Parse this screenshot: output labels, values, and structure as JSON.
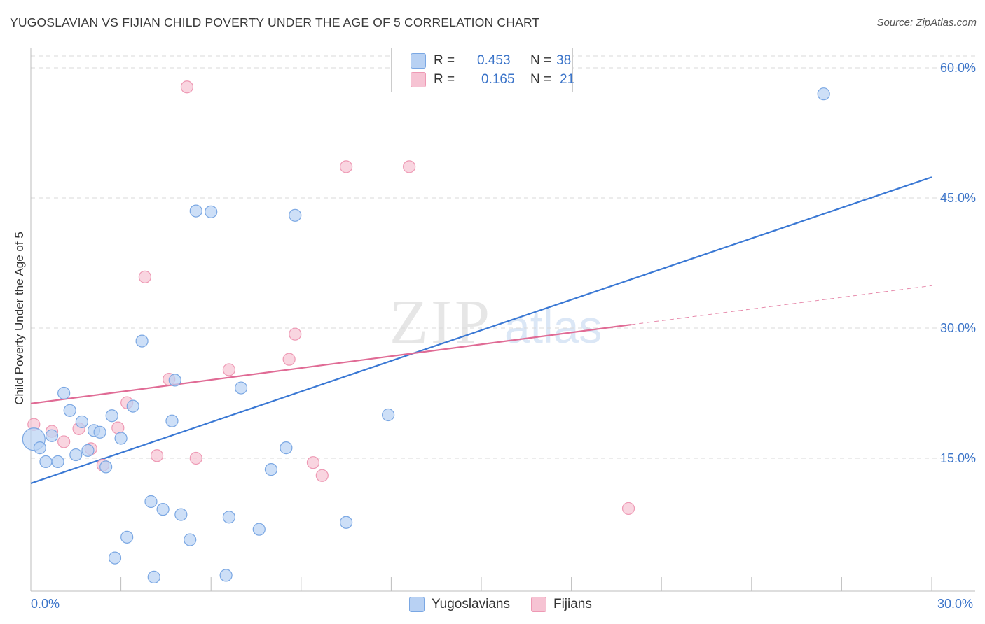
{
  "header": {
    "title": "YUGOSLAVIAN VS FIJIAN CHILD POVERTY UNDER THE AGE OF 5 CORRELATION CHART",
    "source": "Source: ZipAtlas.com"
  },
  "legend_top": {
    "rows": [
      {
        "r_label": "R =",
        "r_value": "0.453",
        "n_label": "N =",
        "n_value": "38"
      },
      {
        "r_label": "R =",
        "r_value": "0.165",
        "n_label": "N =",
        "n_value": "21"
      }
    ]
  },
  "legend_bottom": {
    "items": [
      "Yugoslavians",
      "Fijians"
    ]
  },
  "watermark": {
    "zip": "ZIP",
    "atlas": "atlas"
  },
  "colors": {
    "blue_fill": "#b8d1f3",
    "blue_stroke": "#7aa7e3",
    "blue_line": "#3a78d4",
    "pink_fill": "#f6c3d3",
    "pink_stroke": "#ee99b4",
    "pink_line": "#e06b95",
    "grid": "#d9d9d9",
    "axis_text": "#3b74c9"
  },
  "chart_data": {
    "type": "scatter",
    "title": "YUGOSLAVIAN VS FIJIAN CHILD POVERTY UNDER THE AGE OF 5 CORRELATION CHART",
    "xlabel": "",
    "ylabel": "Child Poverty Under the Age of 5",
    "xlim": [
      0,
      30
    ],
    "ylim": [
      0,
      60
    ],
    "x_tick_labels": [
      "0.0%",
      "30.0%"
    ],
    "y_ticks": [
      15,
      30,
      45,
      60
    ],
    "y_tick_labels": [
      "15.0%",
      "30.0%",
      "45.0%",
      "60.0%"
    ],
    "grid": true,
    "legend": "top-center",
    "series": [
      {
        "name": "Yugoslavians",
        "R": 0.453,
        "N": 38,
        "trend": {
          "x": [
            0,
            30
          ],
          "y": [
            12.1,
            47.4
          ]
        },
        "points": [
          {
            "x": 0.1,
            "y": 17.2,
            "big": true
          },
          {
            "x": 0.3,
            "y": 16.2
          },
          {
            "x": 0.5,
            "y": 14.6
          },
          {
            "x": 0.7,
            "y": 17.6
          },
          {
            "x": 0.9,
            "y": 14.6
          },
          {
            "x": 1.1,
            "y": 22.5
          },
          {
            "x": 1.3,
            "y": 20.5
          },
          {
            "x": 1.5,
            "y": 15.4
          },
          {
            "x": 1.7,
            "y": 19.2
          },
          {
            "x": 1.9,
            "y": 15.9
          },
          {
            "x": 2.1,
            "y": 18.2
          },
          {
            "x": 2.3,
            "y": 18.0
          },
          {
            "x": 2.5,
            "y": 14.0
          },
          {
            "x": 2.7,
            "y": 19.9
          },
          {
            "x": 3.0,
            "y": 17.3
          },
          {
            "x": 3.4,
            "y": 21.0
          },
          {
            "x": 3.7,
            "y": 28.5
          },
          {
            "x": 4.0,
            "y": 10.0
          },
          {
            "x": 4.4,
            "y": 9.1
          },
          {
            "x": 4.7,
            "y": 19.3
          },
          {
            "x": 4.8,
            "y": 24.0
          },
          {
            "x": 5.0,
            "y": 8.5
          },
          {
            "x": 5.5,
            "y": 43.5
          },
          {
            "x": 6.0,
            "y": 43.4
          },
          {
            "x": 6.6,
            "y": 8.2
          },
          {
            "x": 7.0,
            "y": 23.1
          },
          {
            "x": 7.6,
            "y": 6.8
          },
          {
            "x": 8.0,
            "y": 13.7
          },
          {
            "x": 8.5,
            "y": 16.2
          },
          {
            "x": 8.8,
            "y": 43.0
          },
          {
            "x": 10.5,
            "y": 7.6
          },
          {
            "x": 11.9,
            "y": 20.0
          },
          {
            "x": 26.4,
            "y": 57.0
          },
          {
            "x": 3.2,
            "y": 5.9
          },
          {
            "x": 2.8,
            "y": 3.5
          },
          {
            "x": 4.1,
            "y": 1.3
          },
          {
            "x": 5.3,
            "y": 5.6
          },
          {
            "x": 6.5,
            "y": 1.5
          }
        ]
      },
      {
        "name": "Fijians",
        "R": 0.165,
        "N": 21,
        "trend": {
          "x": [
            0,
            20
          ],
          "y": [
            21.3,
            30.4
          ]
        },
        "trend_extension": {
          "x": [
            20,
            30
          ],
          "y": [
            30.4,
            34.9
          ]
        },
        "points": [
          {
            "x": 0.1,
            "y": 18.9
          },
          {
            "x": 0.7,
            "y": 18.1
          },
          {
            "x": 1.1,
            "y": 16.9
          },
          {
            "x": 1.6,
            "y": 18.4
          },
          {
            "x": 2.0,
            "y": 16.1
          },
          {
            "x": 2.4,
            "y": 14.2
          },
          {
            "x": 2.9,
            "y": 18.5
          },
          {
            "x": 3.2,
            "y": 21.4
          },
          {
            "x": 3.8,
            "y": 35.9
          },
          {
            "x": 4.2,
            "y": 15.3
          },
          {
            "x": 4.6,
            "y": 24.1
          },
          {
            "x": 5.2,
            "y": 57.8
          },
          {
            "x": 5.5,
            "y": 15.0
          },
          {
            "x": 6.6,
            "y": 25.2
          },
          {
            "x": 8.6,
            "y": 26.4
          },
          {
            "x": 8.8,
            "y": 29.3
          },
          {
            "x": 9.4,
            "y": 14.5
          },
          {
            "x": 9.7,
            "y": 13.0
          },
          {
            "x": 10.5,
            "y": 48.6
          },
          {
            "x": 12.6,
            "y": 48.6
          },
          {
            "x": 19.9,
            "y": 9.2
          }
        ]
      }
    ]
  }
}
